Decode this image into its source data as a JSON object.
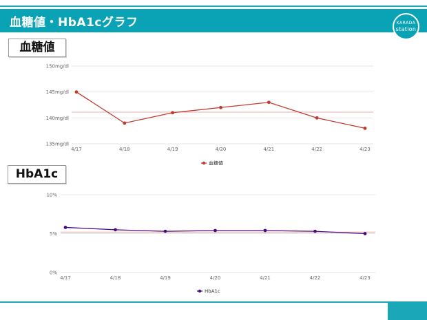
{
  "header": {
    "title": "血糖値・HbA1cグラフ",
    "logo_line1": "KARADA",
    "logo_line2": "station"
  },
  "colors": {
    "accent": "#0aa3b5",
    "glucose_series": "#c0392b",
    "hba1c_series": "#4b0c82"
  },
  "sections": {
    "glucose_label": "血糖値",
    "hba1c_label": "HbA1c"
  },
  "chart_data": [
    {
      "type": "line",
      "categories": [
        "4/17",
        "4/18",
        "4/19",
        "4/20",
        "4/21",
        "4/22",
        "4/23"
      ],
      "series": [
        {
          "name": "血糖値",
          "values": [
            145,
            139,
            141,
            142,
            143,
            140,
            138
          ]
        }
      ],
      "reference_value": 141.1,
      "ylim": [
        135,
        150
      ],
      "yticks": [
        135,
        140,
        145,
        150
      ],
      "ytick_labels": [
        "135mg/dl",
        "140mg/dl",
        "145mg/dl",
        "150mg/dl"
      ],
      "grid": true,
      "legend": "bottom"
    },
    {
      "type": "line",
      "categories": [
        "4/17",
        "4/18",
        "4/19",
        "4/20",
        "4/21",
        "4/22",
        "4/23"
      ],
      "series": [
        {
          "name": "HbA1c",
          "values": [
            5.8,
            5.5,
            5.3,
            5.4,
            5.4,
            5.3,
            5.0
          ]
        }
      ],
      "reference_value": 5.2,
      "ylim": [
        0,
        10
      ],
      "yticks": [
        0,
        5,
        10
      ],
      "ytick_labels": [
        "0%",
        "5%",
        "10%"
      ],
      "grid": true,
      "legend": "bottom"
    }
  ]
}
